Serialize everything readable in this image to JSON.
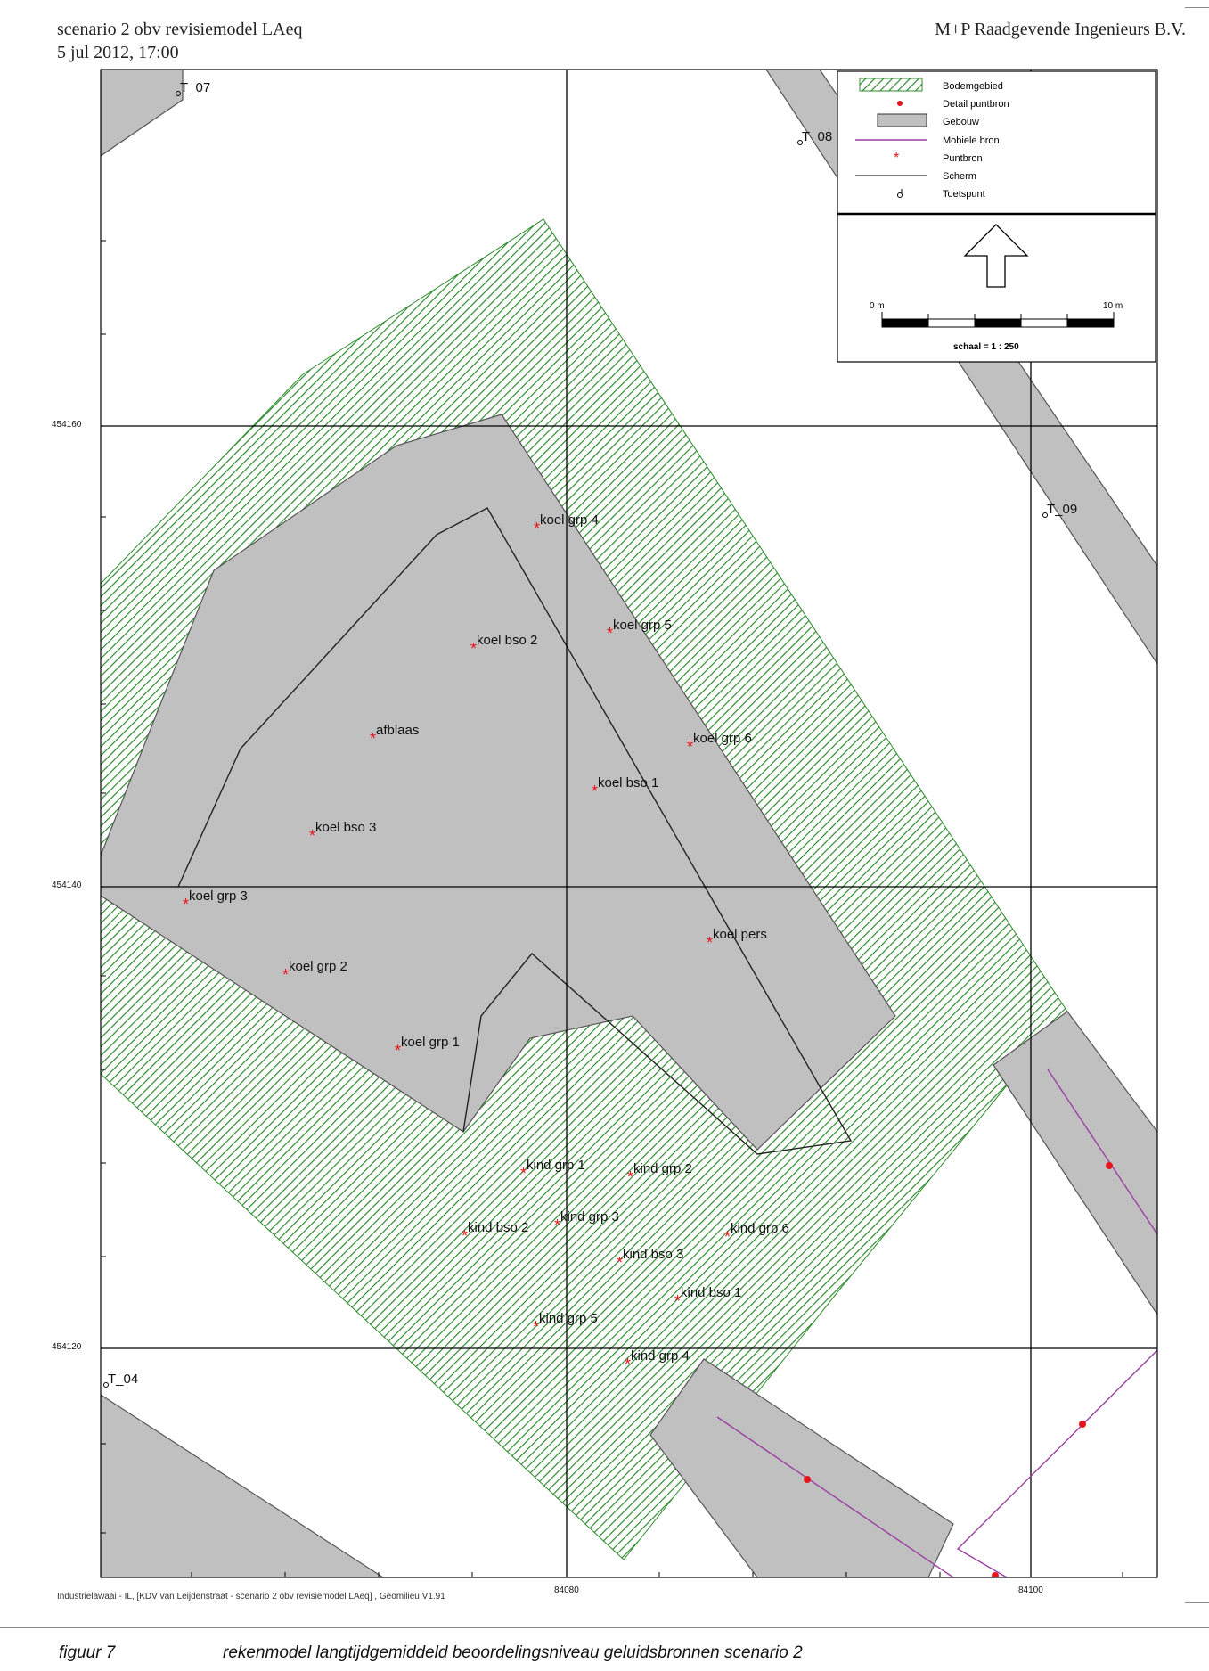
{
  "header": {
    "title": "scenario 2 obv revisiemodel LAeq",
    "date": "5 jul 2012, 17:00",
    "company": "M+P Raadgevende Ingenieurs B.V."
  },
  "legend": {
    "items": [
      {
        "icon": "hatched-area-icon",
        "label": "Bodemgebied"
      },
      {
        "icon": "red-dot-icon",
        "label": "Detail puntbron"
      },
      {
        "icon": "grey-rectangle-icon",
        "label": "Gebouw"
      },
      {
        "icon": "purple-line-icon",
        "label": "Mobiele bron"
      },
      {
        "icon": "red-asterisk-icon",
        "label": "Puntbron"
      },
      {
        "icon": "black-line-icon",
        "label": "Scherm"
      },
      {
        "icon": "receiver-point-icon",
        "label": "Toetspunt"
      }
    ],
    "scale_start": "0 m",
    "scale_end": "10 m",
    "scale_text": "schaal = 1 : 250"
  },
  "axes": {
    "y_labels": [
      "454160",
      "454140",
      "454120"
    ],
    "x_labels": [
      "84080",
      "84100"
    ]
  },
  "toetspunten": [
    "T_07",
    "T_08",
    "T_09",
    "T_04"
  ],
  "sources": [
    "koel grp 4",
    "koel grp 5",
    "koel bso 2",
    "afblaas",
    "koel grp 6",
    "koel bso 1",
    "koel bso 3",
    "koel grp 3",
    "koel pers",
    "koel grp 2",
    "koel grp 1",
    "kind grp 1",
    "kind grp 2",
    "kind grp 3",
    "kind bso 2",
    "kind grp 6",
    "kind bso 3",
    "kind bso 1",
    "kind grp 5",
    "kind grp 4"
  ],
  "footer": {
    "source_line": "Industrielawaai - IL, [KDV van Leijdenstraat - scenario 2 obv revisiemodel LAeq] , Geomilieu V1.91",
    "figure_label": "figuur 7",
    "figure_caption": "rekenmodel langtijdgemiddeld beoordelingsniveau geluidsbronnen scenario 2"
  },
  "colors": {
    "building": "#c0c0c0",
    "hatch": "#2e8b2e",
    "source": "#e8141c",
    "mobile": "#9b3fa0",
    "grid": "#000000"
  }
}
